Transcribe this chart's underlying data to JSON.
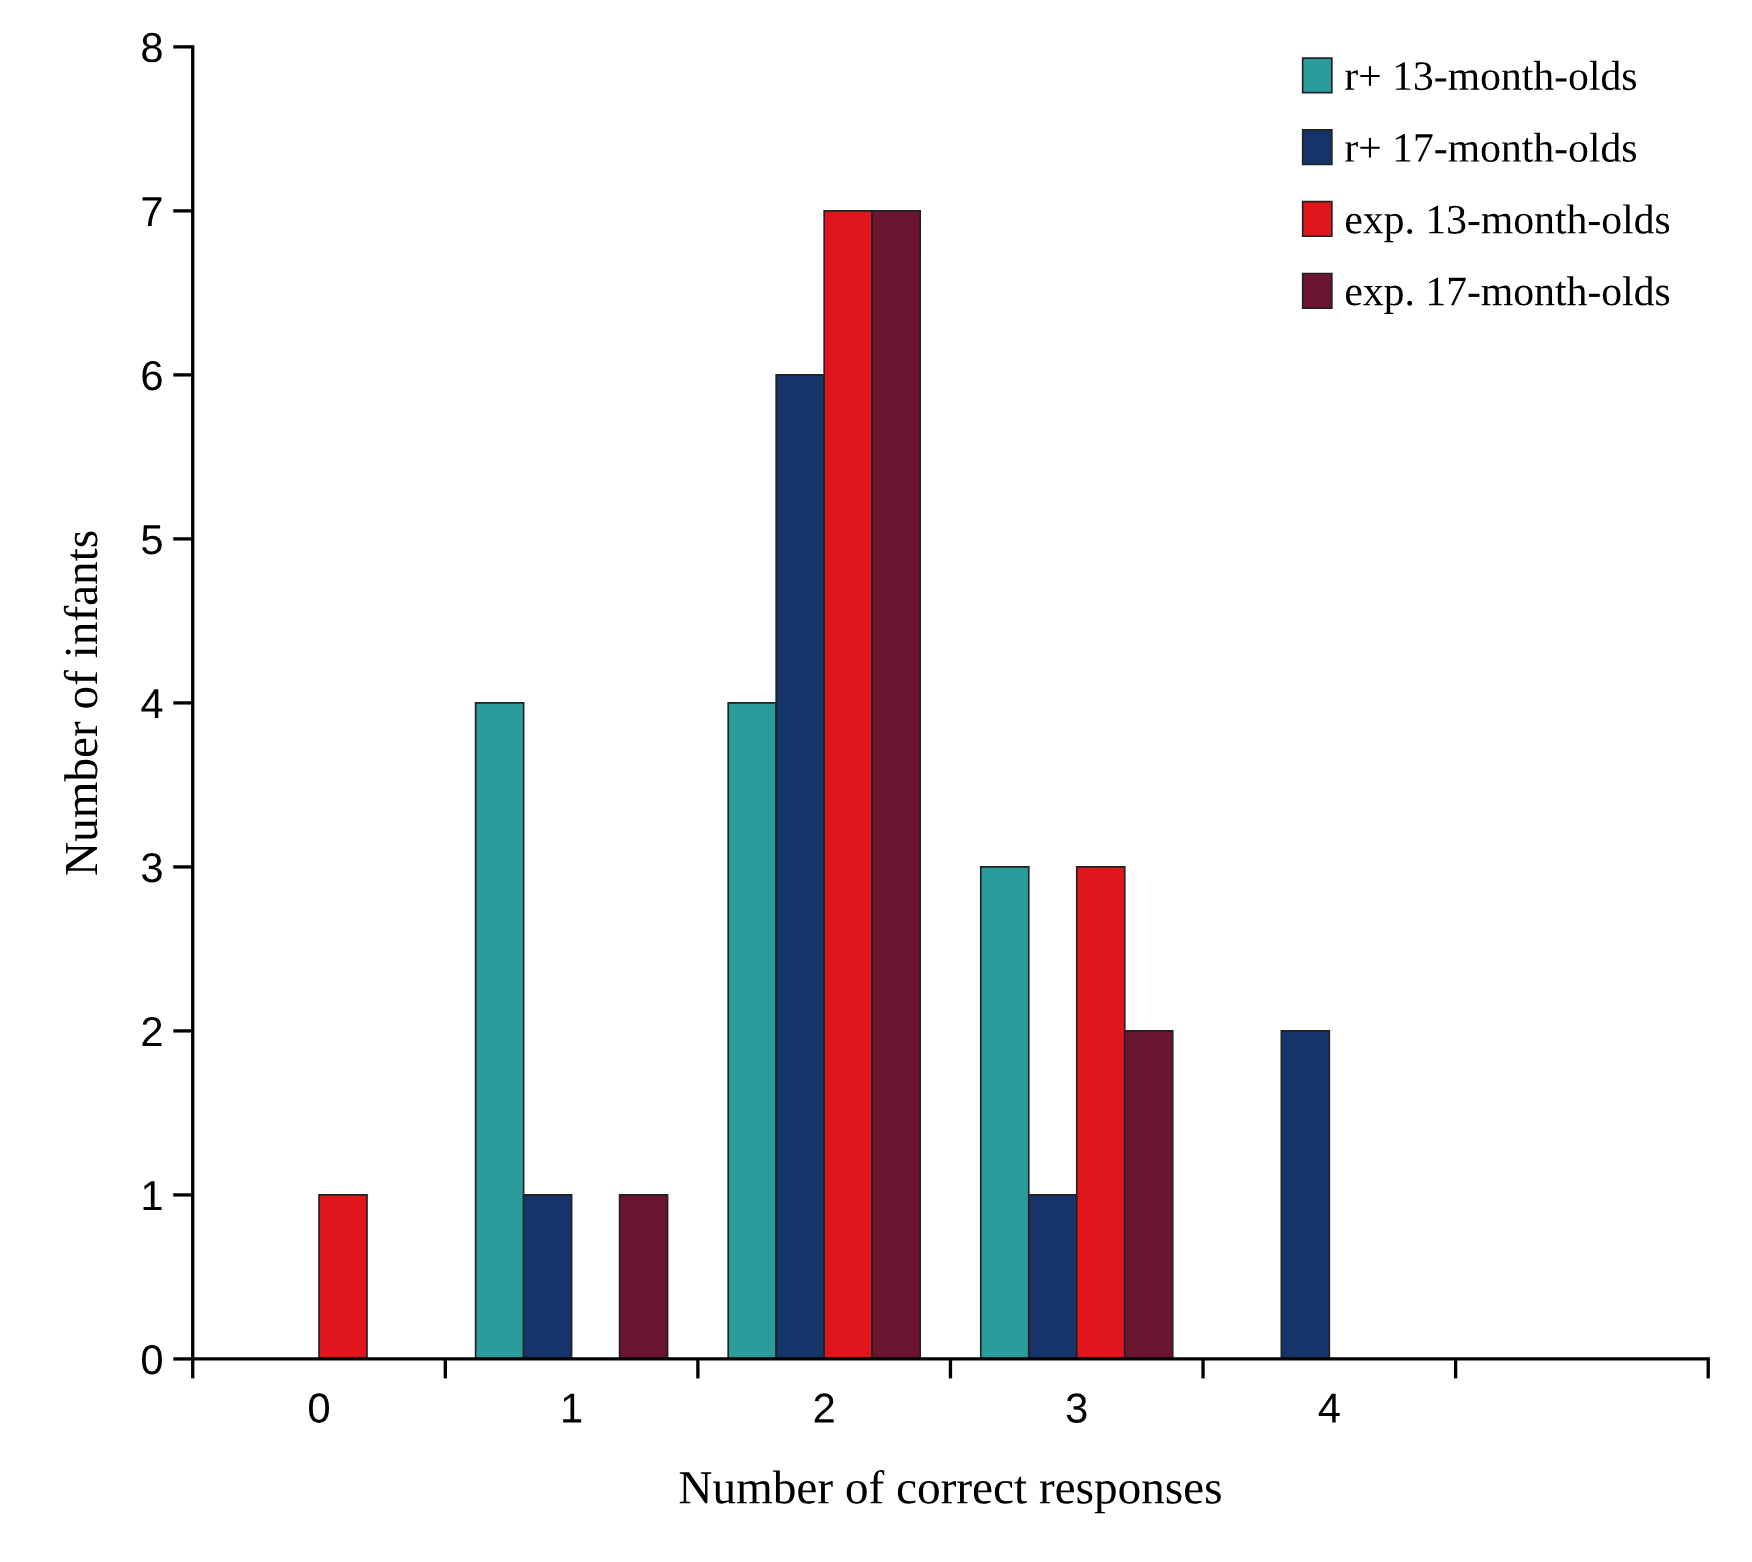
{
  "chart_data": {
    "type": "bar",
    "xlabel": "Number of correct responses",
    "ylabel": "Number of infants",
    "categories": [
      "0",
      "1",
      "2",
      "3",
      "4",
      null
    ],
    "series": [
      {
        "name": "r+ 13-month-olds",
        "color": "#2a9c9c",
        "values": [
          0,
          4,
          4,
          3,
          0,
          0
        ]
      },
      {
        "name": "r+ 17-month-olds",
        "color": "#17346a",
        "values": [
          0,
          1,
          6,
          1,
          2,
          0
        ]
      },
      {
        "name": "exp. 13-month-olds",
        "color": "#e0161c",
        "values": [
          1,
          0,
          7,
          3,
          0,
          0
        ]
      },
      {
        "name": "exp. 17-month-olds",
        "color": "#6a1430",
        "values": [
          0,
          1,
          7,
          2,
          0,
          0
        ]
      }
    ],
    "ylim": [
      0,
      8
    ],
    "yticks": [
      0,
      1,
      2,
      3,
      4,
      5,
      6,
      7,
      8
    ],
    "grid": false,
    "legend": "top right"
  }
}
